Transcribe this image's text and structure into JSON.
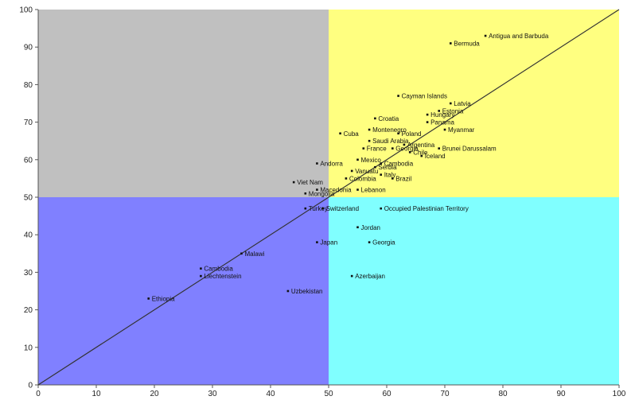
{
  "chart_data": {
    "type": "scatter",
    "title": "",
    "xlabel": "",
    "ylabel": "",
    "xlim": [
      0,
      100
    ],
    "ylim": [
      0,
      100
    ],
    "x_ticks": [
      "0",
      "10",
      "20",
      "30",
      "40",
      "50",
      "60",
      "70",
      "80",
      "90",
      "100"
    ],
    "y_ticks": [
      "0",
      "10",
      "20",
      "30",
      "40",
      "50",
      "60",
      "70",
      "80",
      "90",
      "100"
    ],
    "grid": false,
    "legend": "none",
    "reference_line": {
      "from": [
        0,
        0
      ],
      "to": [
        100,
        100
      ]
    },
    "quadrants": [
      {
        "x": [
          0,
          50
        ],
        "y": [
          50,
          100
        ],
        "color": "#c0c0c0"
      },
      {
        "x": [
          50,
          100
        ],
        "y": [
          50,
          100
        ],
        "color": "#ffff80"
      },
      {
        "x": [
          0,
          50
        ],
        "y": [
          0,
          50
        ],
        "color": "#8080ff"
      },
      {
        "x": [
          50,
          100
        ],
        "y": [
          0,
          50
        ],
        "color": "#80ffff"
      }
    ],
    "points": [
      {
        "label": "Antigua and Barbuda",
        "x": 77,
        "y": 93
      },
      {
        "label": "Bermuda",
        "x": 71,
        "y": 91
      },
      {
        "label": "Cayman Islands",
        "x": 62,
        "y": 77
      },
      {
        "label": "Latvia",
        "x": 71,
        "y": 75
      },
      {
        "label": "Estonia",
        "x": 69,
        "y": 73
      },
      {
        "label": "Hungary",
        "x": 67,
        "y": 72
      },
      {
        "label": "Croatia",
        "x": 58,
        "y": 71
      },
      {
        "label": "Panama",
        "x": 67,
        "y": 70
      },
      {
        "label": "Myanmar",
        "x": 70,
        "y": 68
      },
      {
        "label": "Cuba",
        "x": 52,
        "y": 67
      },
      {
        "label": "Montenegro",
        "x": 57,
        "y": 68
      },
      {
        "label": "Poland",
        "x": 62,
        "y": 67
      },
      {
        "label": "Saudi Arabia",
        "x": 57,
        "y": 65
      },
      {
        "label": "Argentina",
        "x": 63,
        "y": 64
      },
      {
        "label": "France",
        "x": 56,
        "y": 63
      },
      {
        "label": "Georgia",
        "x": 61,
        "y": 63
      },
      {
        "label": "Chile",
        "x": 64,
        "y": 62
      },
      {
        "label": "Brunei Darussalam",
        "x": 69,
        "y": 63
      },
      {
        "label": "Iceland",
        "x": 66,
        "y": 61
      },
      {
        "label": "Andorra",
        "x": 48,
        "y": 59
      },
      {
        "label": "Mexico",
        "x": 55,
        "y": 60
      },
      {
        "label": "Cambodia",
        "x": 59,
        "y": 59
      },
      {
        "label": "Serbia",
        "x": 58,
        "y": 58
      },
      {
        "label": "Vanuatu",
        "x": 54,
        "y": 57
      },
      {
        "label": "Italy",
        "x": 59,
        "y": 56
      },
      {
        "label": "Colombia",
        "x": 53,
        "y": 55
      },
      {
        "label": "Brazil",
        "x": 61,
        "y": 55
      },
      {
        "label": "Viet Nam",
        "x": 44,
        "y": 54
      },
      {
        "label": "Lebanon",
        "x": 55,
        "y": 52
      },
      {
        "label": "Macedonia",
        "x": 48,
        "y": 52
      },
      {
        "label": "Mongolia",
        "x": 46,
        "y": 51
      },
      {
        "label": "Turkey",
        "x": 46,
        "y": 47
      },
      {
        "label": "Switzerland",
        "x": 49,
        "y": 47
      },
      {
        "label": "Occupied Palestinian Territory",
        "x": 59,
        "y": 47
      },
      {
        "label": "Jordan",
        "x": 55,
        "y": 42
      },
      {
        "label": "Japan",
        "x": 48,
        "y": 38
      },
      {
        "label": "Georgia",
        "x": 57,
        "y": 38
      },
      {
        "label": "Malawi",
        "x": 35,
        "y": 35
      },
      {
        "label": "Cambodia",
        "x": 28,
        "y": 31
      },
      {
        "label": "Liechtenstein",
        "x": 28,
        "y": 29
      },
      {
        "label": "Azerbaijan",
        "x": 54,
        "y": 29
      },
      {
        "label": "Uzbekistan",
        "x": 43,
        "y": 25
      },
      {
        "label": "Ethiopia",
        "x": 19,
        "y": 23
      }
    ]
  }
}
